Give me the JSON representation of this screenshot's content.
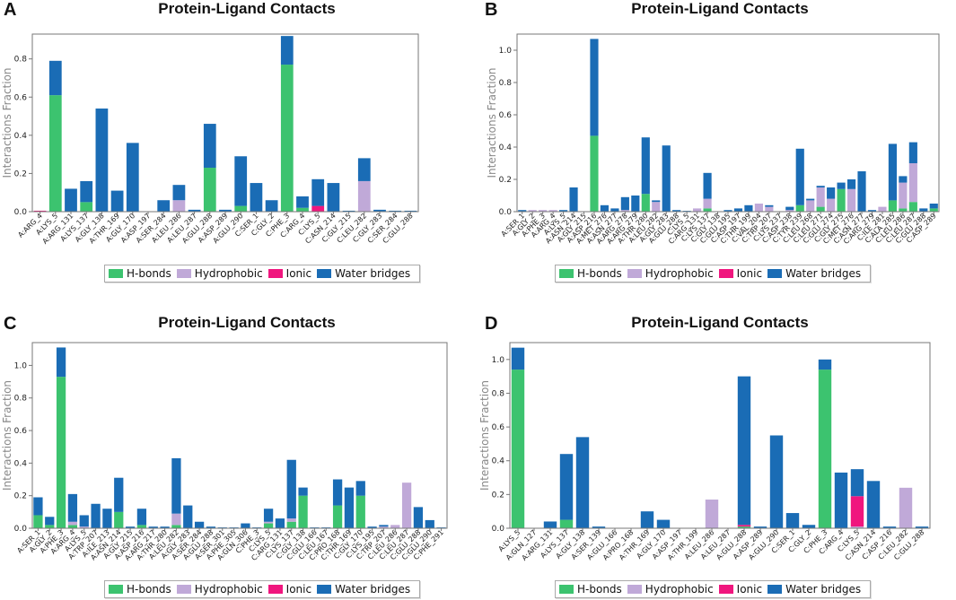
{
  "colors": {
    "hbonds": "#3cc36f",
    "hydrophobic": "#c0a9d8",
    "ionic": "#f0167e",
    "water": "#1a6cb5",
    "axis": "#777777",
    "text": "#222222"
  },
  "legend_labels": [
    "H-bonds",
    "Hydrophobic",
    "Ionic",
    "Water bridges"
  ],
  "chart_data": [
    {
      "panel": "A",
      "type": "bar",
      "stacked": true,
      "title": "Protein-Ligand Contacts",
      "ylabel": "Interactions Fraction",
      "ylim": [
        0,
        0.93
      ],
      "yticks": [
        0.0,
        0.2,
        0.4,
        0.6,
        0.8
      ],
      "categories": [
        "A:ARG_4",
        "A:LYS_5",
        "A:ARG_131",
        "A:LYS_137",
        "A:GLY_138",
        "A:THR_169",
        "A:GLY_170",
        "A:ASP_197",
        "A:SER_284",
        "A:LEU_286",
        "A:LEU_287",
        "A:GLU_288",
        "A:ASP_289",
        "A:GLU_290",
        "C:SER_1",
        "C:GLY_2",
        "C:PHE_3",
        "C:ARG_4",
        "C:LYS_5",
        "C:ASN_214",
        "C:GLY_215",
        "C:LEU_282",
        "C:GLY_283",
        "C:SER_284",
        "C:GLU_288"
      ],
      "series": [
        {
          "name": "H-bonds",
          "values": [
            0,
            0.61,
            0,
            0.05,
            0,
            0,
            0,
            0,
            0,
            0,
            0,
            0.23,
            0,
            0.03,
            0,
            0,
            0.77,
            0.02,
            0,
            0,
            0,
            0,
            0,
            0,
            0
          ]
        },
        {
          "name": "Hydrophobic",
          "values": [
            0,
            0,
            0,
            0,
            0,
            0,
            0,
            0,
            0,
            0.06,
            0,
            0,
            0,
            0,
            0,
            0,
            0,
            0,
            0,
            0,
            0,
            0.16,
            0,
            0,
            0
          ]
        },
        {
          "name": "Ionic",
          "values": [
            0.005,
            0,
            0,
            0,
            0,
            0,
            0,
            0,
            0,
            0,
            0,
            0,
            0,
            0,
            0,
            0,
            0,
            0,
            0.03,
            0,
            0,
            0,
            0,
            0,
            0
          ]
        },
        {
          "name": "Water bridges",
          "values": [
            0,
            0.18,
            0.12,
            0.11,
            0.54,
            0.11,
            0.36,
            0,
            0.06,
            0.08,
            0.01,
            0.23,
            0.01,
            0.26,
            0.15,
            0.06,
            0.15,
            0.06,
            0.14,
            0.15,
            0.005,
            0.12,
            0.01,
            0.005,
            0.005
          ]
        }
      ]
    },
    {
      "panel": "B",
      "type": "bar",
      "stacked": true,
      "title": "Protein-Ligand Contacts",
      "ylabel": "Interactions Fraction",
      "ylim": [
        0,
        1.1
      ],
      "yticks": [
        0.0,
        0.2,
        0.4,
        0.6,
        0.8,
        1.0
      ],
      "categories": [
        "A:SER_1",
        "A:GLY_2",
        "A:PHE_3",
        "A:ARG_4",
        "A:LYS_5",
        "A:ASN_214",
        "A:GLY_215",
        "A:ASP_216",
        "A:MET_276",
        "A:ASN_277",
        "A:ARG_278",
        "A:ARG_279",
        "A:THR_280",
        "A:LEU_282",
        "A:GLY_283",
        "A:GLU_288",
        "C:LYS_5",
        "C:ARG_131",
        "C:LYS_137",
        "C:GLY_138",
        "C:GLU_195",
        "C:ASP_197",
        "C:THR_199",
        "C:VAL_204",
        "C:TRP_207",
        "C:LYS_237",
        "C:ASP_238",
        "C:TYR_239",
        "C:LEU_268",
        "C:LEU_271",
        "C:GLU_274",
        "C:GLY_275",
        "C:MET_276",
        "C:ASN_277",
        "C:ARG_279",
        "C:ILE_281",
        "C:ALA_285",
        "C:LEU_286",
        "C:LEU_287",
        "C:GLU_288",
        "C:ASP_289"
      ],
      "series": [
        {
          "name": "H-bonds",
          "values": [
            0,
            0,
            0,
            0,
            0,
            0,
            0,
            0.47,
            0,
            0,
            0,
            0,
            0.11,
            0,
            0,
            0,
            0,
            0,
            0.02,
            0,
            0,
            0,
            0,
            0,
            0,
            0,
            0,
            0.04,
            0,
            0.03,
            0,
            0.14,
            0,
            0,
            0,
            0,
            0.07,
            0.02,
            0.06,
            0,
            0.02
          ]
        },
        {
          "name": "Hydrophobic",
          "values": [
            0,
            0.01,
            0.01,
            0.01,
            0,
            0,
            0,
            0,
            0,
            0,
            0.01,
            0,
            0,
            0.06,
            0,
            0,
            0,
            0.02,
            0.06,
            0,
            0,
            0,
            0,
            0.05,
            0.03,
            0,
            0.01,
            0,
            0.07,
            0.12,
            0.08,
            0,
            0.14,
            0,
            0,
            0.03,
            0,
            0.16,
            0.24,
            0,
            0
          ]
        },
        {
          "name": "Ionic",
          "values": [
            0,
            0,
            0,
            0,
            0,
            0,
            0,
            0,
            0,
            0,
            0,
            0,
            0,
            0,
            0,
            0,
            0,
            0,
            0,
            0,
            0,
            0,
            0,
            0,
            0,
            0,
            0,
            0,
            0,
            0,
            0,
            0,
            0,
            0,
            0,
            0,
            0,
            0,
            0,
            0,
            0
          ]
        },
        {
          "name": "Water bridges",
          "values": [
            0.01,
            0,
            0,
            0,
            0.01,
            0.15,
            0,
            0.6,
            0.04,
            0.02,
            0.08,
            0.1,
            0.35,
            0.01,
            0.41,
            0.01,
            0.005,
            0,
            0.16,
            0,
            0.01,
            0.02,
            0.04,
            0,
            0.01,
            0,
            0.02,
            0.35,
            0.01,
            0.01,
            0.07,
            0.04,
            0.06,
            0.25,
            0.01,
            0,
            0.35,
            0.04,
            0.13,
            0.02,
            0.03
          ]
        }
      ]
    },
    {
      "panel": "C",
      "type": "bar",
      "stacked": true,
      "title": "Protein-Ligand Contacts",
      "ylabel": "Interactions Fraction",
      "ylim": [
        0,
        1.14
      ],
      "yticks": [
        0.0,
        0.2,
        0.4,
        0.6,
        0.8,
        1.0
      ],
      "categories": [
        "A:SER_1",
        "A:GLY_2",
        "A:PHE_3",
        "A:ARG_4",
        "A:LYS_5",
        "A:TRP_207",
        "A:ILE_213",
        "A:ASN_214",
        "A:GLY_215",
        "A:ASP_216",
        "A:ARG_217",
        "A:THR_280",
        "A:LEU_282",
        "A:GLY_283",
        "A:SER_284",
        "A:GLU_288",
        "A:SER_301",
        "A:PHE_305",
        "A:GLN_306",
        "C:PHE_3",
        "C:LYS_5",
        "C:ARG_131",
        "C:LYS_137",
        "C:GLY_138",
        "C:GLU_166",
        "C:LEU_167",
        "C:PRO_168",
        "C:THR_169",
        "C:GLY_170",
        "C:LYS_195",
        "C:TRP_207",
        "C:LEU_286",
        "C:LEU_287",
        "C:GLU_288",
        "C:GLU_290",
        "C:PHE_291"
      ],
      "series": [
        {
          "name": "H-bonds",
          "values": [
            0.08,
            0.02,
            0.93,
            0.02,
            0,
            0,
            0,
            0.1,
            0,
            0.02,
            0,
            0,
            0.02,
            0,
            0,
            0,
            0,
            0,
            0,
            0,
            0.03,
            0,
            0.04,
            0.2,
            0,
            0,
            0.14,
            0,
            0.2,
            0,
            0,
            0,
            0,
            0,
            0,
            0
          ]
        },
        {
          "name": "Hydrophobic",
          "values": [
            0,
            0,
            0,
            0.02,
            0.01,
            0,
            0,
            0,
            0,
            0,
            0,
            0,
            0.07,
            0,
            0,
            0,
            0,
            0,
            0,
            0,
            0.01,
            0,
            0.02,
            0,
            0,
            0,
            0,
            0,
            0,
            0,
            0.01,
            0.02,
            0.28,
            0,
            0,
            0
          ]
        },
        {
          "name": "Ionic",
          "values": [
            0,
            0,
            0,
            0,
            0,
            0,
            0,
            0,
            0,
            0,
            0,
            0,
            0,
            0,
            0,
            0,
            0,
            0,
            0,
            0,
            0,
            0,
            0,
            0,
            0,
            0,
            0,
            0,
            0,
            0,
            0,
            0,
            0,
            0,
            0,
            0
          ]
        },
        {
          "name": "Water bridges",
          "values": [
            0.11,
            0.05,
            0.18,
            0.17,
            0.07,
            0.15,
            0.12,
            0.21,
            0.01,
            0.1,
            0.01,
            0.01,
            0.34,
            0.14,
            0.04,
            0.01,
            0.005,
            0.005,
            0.03,
            0.005,
            0.08,
            0.06,
            0.36,
            0.05,
            0.005,
            0.005,
            0.16,
            0.25,
            0.09,
            0.01,
            0.01,
            0,
            0,
            0.13,
            0.05,
            0.005
          ]
        }
      ]
    },
    {
      "panel": "D",
      "type": "bar",
      "stacked": true,
      "title": "Protein-Ligand Contacts",
      "ylabel": "Interactions Fraction",
      "ylim": [
        0,
        1.1
      ],
      "yticks": [
        0.0,
        0.2,
        0.4,
        0.6,
        0.8,
        1.0
      ],
      "categories": [
        "A:LYS_5",
        "A:GLN_127",
        "A:ARG_131",
        "A:LYS_137",
        "A:GLY_138",
        "A:SER_139",
        "A:GLU_166",
        "A:PRO_168",
        "A:THR_169",
        "A:GLY_170",
        "A:ASP_197",
        "A:THR_199",
        "A:LEU_286",
        "A:LEU_287",
        "A:GLU_288",
        "A:ASP_289",
        "A:GLU_290",
        "C:SER_1",
        "C:GLY_2",
        "C:PHE_3",
        "C:ARG_4",
        "C:LYS_5",
        "C:ASN_214",
        "C:ASP_216",
        "C:LEU_282",
        "C:GLU_288"
      ],
      "series": [
        {
          "name": "H-bonds",
          "values": [
            0.94,
            0,
            0,
            0.05,
            0,
            0,
            0,
            0,
            0,
            0,
            0,
            0,
            0,
            0,
            0.01,
            0,
            0,
            0,
            0,
            0.94,
            0,
            0,
            0,
            0,
            0,
            0
          ]
        },
        {
          "name": "Hydrophobic",
          "values": [
            0,
            0,
            0,
            0,
            0,
            0,
            0,
            0,
            0,
            0,
            0,
            0,
            0.17,
            0,
            0,
            0,
            0,
            0,
            0,
            0,
            0,
            0.01,
            0,
            0,
            0.24,
            0
          ]
        },
        {
          "name": "Ionic",
          "values": [
            0,
            0,
            0,
            0,
            0,
            0,
            0,
            0,
            0,
            0,
            0,
            0,
            0,
            0,
            0.01,
            0,
            0,
            0,
            0,
            0,
            0,
            0.18,
            0,
            0,
            0,
            0
          ]
        },
        {
          "name": "Water bridges",
          "values": [
            0.13,
            0,
            0.04,
            0.39,
            0.54,
            0.01,
            0,
            0,
            0.1,
            0.05,
            0,
            0,
            0,
            0,
            0.88,
            0.01,
            0.55,
            0.09,
            0.02,
            0.06,
            0.33,
            0.16,
            0.28,
            0.01,
            0,
            0.01
          ]
        }
      ]
    }
  ]
}
